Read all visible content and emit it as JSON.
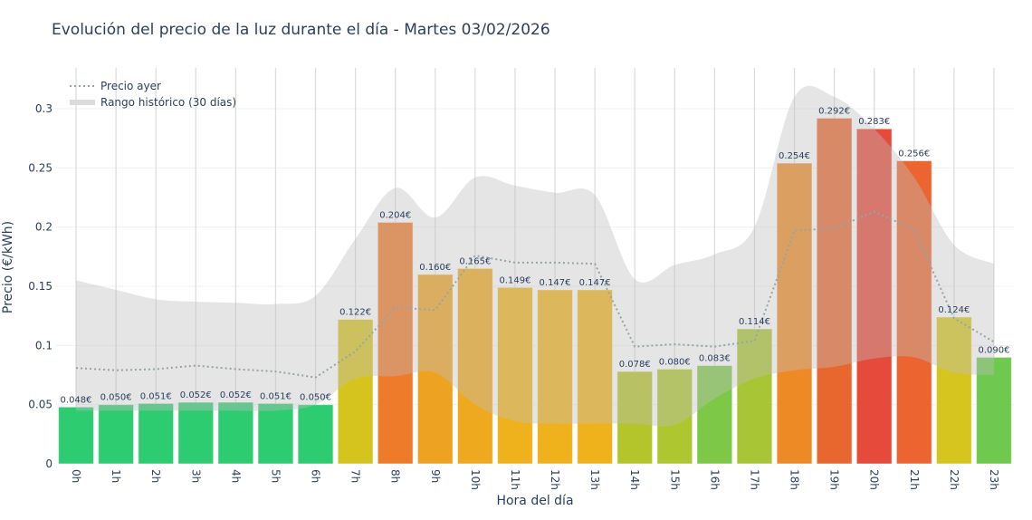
{
  "chart_data": {
    "type": "bar",
    "title": "Evolución del precio de la luz durante el día - Martes 03/02/2026",
    "xlabel": "Hora del día",
    "ylabel": "Precio (€/kWh)",
    "ylim": [
      0,
      0.33
    ],
    "yticks": [
      "0",
      "0.05",
      "0.1",
      "0.15",
      "0.2",
      "0.25",
      "0.3"
    ],
    "grid": true,
    "legend_position": "top-left",
    "categories": [
      "0h",
      "1h",
      "2h",
      "3h",
      "4h",
      "5h",
      "6h",
      "7h",
      "8h",
      "9h",
      "10h",
      "11h",
      "12h",
      "13h",
      "14h",
      "15h",
      "16h",
      "17h",
      "18h",
      "19h",
      "20h",
      "21h",
      "22h",
      "23h"
    ],
    "values": [
      0.048,
      0.05,
      0.051,
      0.052,
      0.052,
      0.051,
      0.05,
      0.122,
      0.204,
      0.16,
      0.165,
      0.149,
      0.147,
      0.147,
      0.078,
      0.08,
      0.083,
      0.114,
      0.254,
      0.292,
      0.283,
      0.256,
      0.124,
      0.09
    ],
    "labels": [
      "0.048€",
      "0.050€",
      "0.051€",
      "0.052€",
      "0.052€",
      "0.051€",
      "0.050€",
      "0.122€",
      "0.204€",
      "0.160€",
      "0.165€",
      "0.149€",
      "0.147€",
      "0.147€",
      "0.078€",
      "0.080€",
      "0.083€",
      "0.114€",
      "0.254€",
      "0.292€",
      "0.283€",
      "0.256€",
      "0.124€",
      "0.090€"
    ],
    "bar_colors": [
      "#2ecc71",
      "#2ecc71",
      "#2ecc71",
      "#2ecc71",
      "#2ecc71",
      "#2ecc71",
      "#2ecc71",
      "#d6c41e",
      "#ee7b2a",
      "#eea222",
      "#efa91e",
      "#f0b21c",
      "#f0b21c",
      "#f0b21c",
      "#b4c52b",
      "#aec62f",
      "#7dc846",
      "#a8c535",
      "#ee8a25",
      "#e8672f",
      "#e64a3a",
      "#ec6530",
      "#d6c51e",
      "#6fc94e"
    ],
    "series": [
      {
        "name": "Precio ayer",
        "style": "dotted",
        "color": "#95a5a6",
        "values": [
          0.081,
          0.079,
          0.08,
          0.083,
          0.08,
          0.078,
          0.073,
          0.095,
          0.132,
          0.13,
          0.176,
          0.17,
          0.17,
          0.169,
          0.099,
          0.101,
          0.099,
          0.104,
          0.197,
          0.199,
          0.213,
          0.198,
          0.123,
          0.103
        ]
      },
      {
        "name": "Rango histórico (30 días)",
        "style": "band",
        "color": "#c8c8c8",
        "upper": [
          0.155,
          0.147,
          0.139,
          0.137,
          0.136,
          0.135,
          0.142,
          0.19,
          0.233,
          0.208,
          0.242,
          0.235,
          0.229,
          0.227,
          0.156,
          0.168,
          0.177,
          0.2,
          0.31,
          0.31,
          0.283,
          0.242,
          0.185,
          0.169
        ],
        "lower": [
          0.045,
          0.045,
          0.045,
          0.045,
          0.045,
          0.045,
          0.05,
          0.072,
          0.074,
          0.077,
          0.05,
          0.036,
          0.034,
          0.034,
          0.034,
          0.033,
          0.055,
          0.072,
          0.079,
          0.082,
          0.089,
          0.09,
          0.077,
          0.075
        ]
      }
    ]
  }
}
